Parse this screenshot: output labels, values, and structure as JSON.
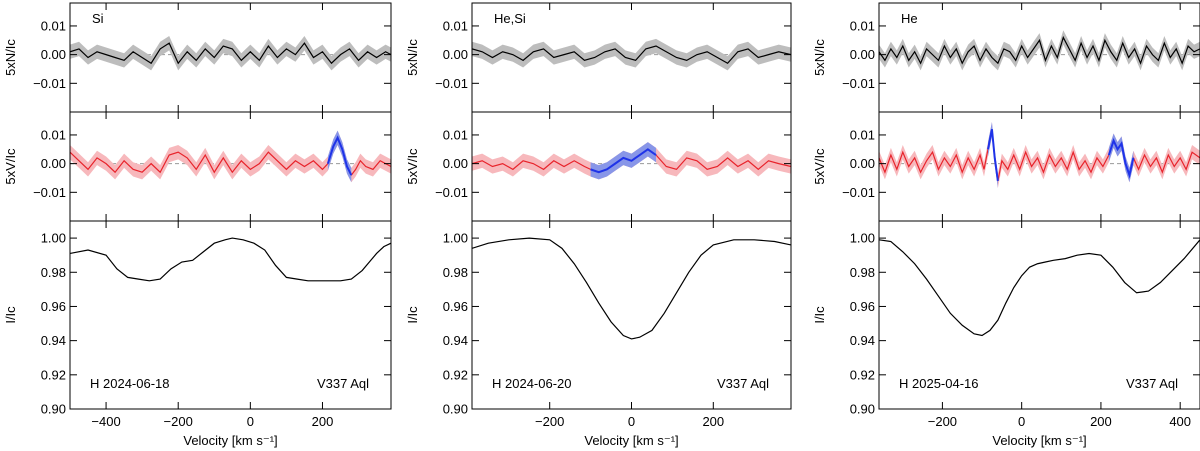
{
  "chart_data": [
    {
      "type": "line",
      "panel_label": "Si",
      "annotation_left": "H 2024-06-18",
      "annotation_right": "V337 Aql",
      "xlabel": "Velocity [km s⁻¹]",
      "xlim": [
        -500,
        390
      ],
      "xticks": [
        -400,
        -200,
        0,
        200
      ],
      "xticklabels": [
        "−400",
        "−200",
        "0",
        "200"
      ],
      "rows": {
        "N": {
          "ylabel": "5xN/Iᴄ",
          "ylim": [
            -0.02,
            0.018
          ],
          "yticks": [
            0.01,
            0.0,
            -0.01
          ],
          "yticklabels": [
            "0.01",
            "0.00",
            "−0.01"
          ]
        },
        "V": {
          "ylabel": "5xV/Iᴄ",
          "ylim": [
            -0.02,
            0.018
          ],
          "yticks": [
            0.01,
            0.0,
            -0.01
          ],
          "yticklabels": [
            "0.01",
            "0.00",
            "−0.01"
          ],
          "signal_ranges": [
            [
              210,
              290
            ]
          ]
        },
        "I": {
          "ylabel": "I/Iᴄ",
          "ylim": [
            0.9,
            1.01
          ],
          "yticks": [
            1.0,
            0.98,
            0.96,
            0.94,
            0.92,
            0.9
          ],
          "yticklabels": [
            "1.00",
            "0.98",
            "0.96",
            "0.94",
            "0.92",
            "0.90"
          ]
        }
      },
      "stokes_I": {
        "x": [
          -500,
          -450,
          -400,
          -370,
          -340,
          -310,
          -280,
          -250,
          -220,
          -190,
          -160,
          -130,
          -100,
          -70,
          -50,
          -20,
          10,
          40,
          70,
          100,
          130,
          160,
          190,
          220,
          250,
          280,
          310,
          330,
          350,
          370,
          390
        ],
        "y": [
          0.991,
          0.993,
          0.99,
          0.982,
          0.977,
          0.976,
          0.975,
          0.976,
          0.982,
          0.986,
          0.987,
          0.992,
          0.997,
          0.999,
          1.0,
          0.999,
          0.997,
          0.993,
          0.984,
          0.977,
          0.976,
          0.975,
          0.975,
          0.975,
          0.975,
          0.976,
          0.981,
          0.986,
          0.991,
          0.995,
          0.997
        ]
      },
      "stokes_V": {
        "x": [
          -500,
          -475,
          -450,
          -425,
          -400,
          -375,
          -350,
          -325,
          -300,
          -275,
          -250,
          -225,
          -200,
          -175,
          -150,
          -125,
          -100,
          -75,
          -50,
          -25,
          0,
          25,
          50,
          75,
          100,
          125,
          150,
          175,
          200,
          215,
          230,
          242,
          255,
          268,
          280,
          292,
          305,
          320,
          340,
          360,
          390
        ],
        "y": [
          0.004,
          0.001,
          -0.002,
          0.002,
          0.0,
          -0.003,
          0.001,
          -0.002,
          -0.003,
          0.0,
          -0.003,
          0.003,
          0.004,
          0.002,
          -0.002,
          0.003,
          -0.003,
          0.002,
          -0.003,
          0.001,
          -0.002,
          0.0,
          0.004,
          0.001,
          -0.002,
          0.001,
          -0.001,
          0.001,
          -0.002,
          0.0,
          0.006,
          0.009,
          0.005,
          -0.001,
          -0.004,
          -0.002,
          0.001,
          -0.001,
          -0.002,
          0.001,
          -0.001
        ]
      },
      "stokes_N": {
        "x": [
          -500,
          -475,
          -450,
          -425,
          -400,
          -375,
          -350,
          -325,
          -300,
          -275,
          -250,
          -225,
          -200,
          -175,
          -150,
          -125,
          -100,
          -75,
          -50,
          -25,
          0,
          25,
          50,
          75,
          100,
          125,
          150,
          175,
          200,
          225,
          250,
          275,
          300,
          325,
          350,
          375,
          390
        ],
        "y": [
          0.001,
          0.002,
          -0.001,
          0.001,
          0.0,
          -0.001,
          -0.002,
          0.001,
          -0.001,
          -0.003,
          0.002,
          0.004,
          -0.003,
          0.001,
          -0.002,
          0.002,
          -0.001,
          0.003,
          0.002,
          -0.002,
          0.001,
          -0.002,
          0.003,
          -0.001,
          0.002,
          0.0,
          0.004,
          -0.001,
          0.001,
          -0.003,
          0.0,
          0.002,
          -0.002,
          0.001,
          -0.001,
          0.001,
          0.0
        ]
      }
    },
    {
      "type": "line",
      "panel_label": "He,Si",
      "annotation_left": "H 2024-06-20",
      "annotation_right": "V337 Aql",
      "xlabel": "Velocity [km s⁻¹]",
      "xlim": [
        -390,
        390
      ],
      "xticks": [
        -200,
        0,
        200
      ],
      "xticklabels": [
        "−200",
        "0",
        "200"
      ],
      "rows": {
        "N": {
          "ylabel": "5xN/Iᴄ",
          "ylim": [
            -0.02,
            0.018
          ],
          "yticks": [
            0.01,
            0.0,
            -0.01
          ],
          "yticklabels": [
            "0.01",
            "0.00",
            "−0.01"
          ]
        },
        "V": {
          "ylabel": "5xV/Iᴄ",
          "ylim": [
            -0.02,
            0.018
          ],
          "yticks": [
            0.01,
            0.0,
            -0.01
          ],
          "yticklabels": [
            "0.01",
            "0.00",
            "−0.01"
          ],
          "signal_ranges": [
            [
              -100,
              60
            ]
          ]
        },
        "I": {
          "ylabel": "I/Iᴄ",
          "ylim": [
            0.9,
            1.01
          ],
          "yticks": [
            1.0,
            0.98,
            0.96,
            0.94,
            0.92,
            0.9
          ],
          "yticklabels": [
            "1.00",
            "0.98",
            "0.96",
            "0.94",
            "0.92",
            "0.90"
          ]
        }
      },
      "stokes_I": {
        "x": [
          -390,
          -350,
          -300,
          -250,
          -200,
          -170,
          -140,
          -110,
          -80,
          -50,
          -20,
          0,
          20,
          50,
          80,
          110,
          140,
          170,
          200,
          250,
          300,
          350,
          390
        ],
        "y": [
          0.994,
          0.997,
          0.999,
          1.0,
          0.999,
          0.994,
          0.985,
          0.974,
          0.962,
          0.951,
          0.943,
          0.941,
          0.942,
          0.946,
          0.956,
          0.968,
          0.98,
          0.99,
          0.996,
          0.999,
          0.999,
          0.998,
          0.996
        ]
      },
      "stokes_V": {
        "x": [
          -390,
          -365,
          -340,
          -315,
          -290,
          -265,
          -240,
          -215,
          -190,
          -165,
          -140,
          -115,
          -100,
          -80,
          -60,
          -40,
          -20,
          0,
          20,
          40,
          60,
          85,
          110,
          135,
          160,
          185,
          210,
          235,
          260,
          285,
          310,
          335,
          360,
          390
        ],
        "y": [
          0.0,
          0.001,
          -0.001,
          0.0,
          -0.002,
          0.001,
          0.0,
          -0.002,
          0.001,
          -0.001,
          0.001,
          -0.001,
          -0.002,
          -0.003,
          -0.002,
          0.0,
          0.002,
          0.001,
          0.003,
          0.005,
          0.003,
          -0.001,
          -0.002,
          0.002,
          0.001,
          -0.002,
          -0.001,
          0.002,
          -0.001,
          0.001,
          -0.002,
          0.001,
          0.0,
          -0.001
        ]
      },
      "stokes_N": {
        "x": [
          -390,
          -365,
          -340,
          -315,
          -290,
          -265,
          -240,
          -215,
          -190,
          -165,
          -140,
          -115,
          -90,
          -65,
          -40,
          -15,
          10,
          35,
          60,
          85,
          110,
          135,
          160,
          185,
          210,
          235,
          260,
          285,
          310,
          335,
          360,
          390
        ],
        "y": [
          0.002,
          0.001,
          -0.001,
          0.001,
          0.0,
          -0.002,
          0.001,
          0.002,
          -0.001,
          0.0,
          0.001,
          -0.002,
          -0.001,
          0.001,
          0.002,
          -0.001,
          -0.002,
          0.002,
          0.003,
          0.001,
          -0.001,
          -0.002,
          0.0,
          0.001,
          -0.001,
          -0.003,
          0.001,
          0.002,
          -0.001,
          0.0,
          0.001,
          0.0
        ]
      }
    },
    {
      "type": "line",
      "panel_label": "He",
      "annotation_left": "H 2025-04-16",
      "annotation_right": "V337 Aql",
      "xlabel": "Velocity [km s⁻¹]",
      "xlim": [
        -360,
        450
      ],
      "xticks": [
        -200,
        0,
        200,
        400
      ],
      "xticklabels": [
        "−200",
        "0",
        "200",
        "400"
      ],
      "rows": {
        "N": {
          "ylabel": "5xN/Iᴄ",
          "ylim": [
            -0.02,
            0.018
          ],
          "yticks": [
            0.01,
            0.0,
            -0.01
          ],
          "yticklabels": [
            "0.01",
            "0.00",
            "−0.01"
          ]
        },
        "V": {
          "ylabel": "5xV/Iᴄ",
          "ylim": [
            -0.02,
            0.018
          ],
          "yticks": [
            0.01,
            0.0,
            -0.01
          ],
          "yticklabels": [
            "0.01",
            "0.00",
            "−0.01"
          ],
          "signal_ranges": [
            [
              -90,
              -60
            ],
            [
              220,
              285
            ]
          ]
        },
        "I": {
          "ylabel": "I/Iᴄ",
          "ylim": [
            0.9,
            1.01
          ],
          "yticks": [
            1.0,
            0.98,
            0.96,
            0.94,
            0.92,
            0.9
          ],
          "yticklabels": [
            "1.00",
            "0.98",
            "0.96",
            "0.94",
            "0.92",
            "0.90"
          ]
        }
      },
      "stokes_I": {
        "x": [
          -360,
          -330,
          -300,
          -270,
          -240,
          -210,
          -180,
          -150,
          -120,
          -100,
          -80,
          -60,
          -40,
          -20,
          0,
          20,
          40,
          60,
          80,
          110,
          140,
          170,
          200,
          230,
          260,
          290,
          320,
          350,
          380,
          410,
          450
        ],
        "y": [
          0.999,
          0.998,
          0.992,
          0.985,
          0.976,
          0.966,
          0.956,
          0.949,
          0.944,
          0.943,
          0.946,
          0.952,
          0.962,
          0.971,
          0.978,
          0.983,
          0.985,
          0.986,
          0.987,
          0.988,
          0.99,
          0.991,
          0.99,
          0.983,
          0.974,
          0.968,
          0.969,
          0.974,
          0.981,
          0.988,
          0.999
        ]
      },
      "stokes_V": {
        "x": [
          -360,
          -345,
          -330,
          -315,
          -300,
          -285,
          -270,
          -255,
          -240,
          -225,
          -210,
          -195,
          -180,
          -165,
          -150,
          -135,
          -120,
          -105,
          -95,
          -85,
          -75,
          -68,
          -60,
          -50,
          -35,
          -20,
          -5,
          10,
          25,
          40,
          55,
          70,
          85,
          100,
          115,
          130,
          145,
          160,
          175,
          190,
          205,
          220,
          232,
          242,
          252,
          262,
          272,
          282,
          295,
          310,
          325,
          340,
          355,
          370,
          385,
          400,
          415,
          430,
          450
        ],
        "y": [
          0.002,
          -0.003,
          0.003,
          -0.002,
          0.004,
          -0.001,
          0.002,
          -0.003,
          0.001,
          0.004,
          -0.002,
          0.002,
          -0.001,
          0.003,
          -0.003,
          0.002,
          -0.002,
          0.003,
          -0.002,
          0.005,
          0.012,
          0.002,
          -0.006,
          0.001,
          -0.002,
          0.003,
          -0.002,
          0.004,
          -0.001,
          0.002,
          -0.003,
          0.003,
          -0.001,
          0.002,
          -0.002,
          0.004,
          -0.002,
          0.001,
          -0.003,
          0.002,
          -0.001,
          0.003,
          0.008,
          0.005,
          0.007,
          0.0,
          -0.004,
          0.002,
          -0.002,
          0.003,
          -0.001,
          0.002,
          -0.003,
          0.003,
          -0.001,
          0.002,
          -0.002,
          0.004,
          0.002
        ]
      },
      "stokes_N": {
        "x": [
          -360,
          -345,
          -330,
          -315,
          -300,
          -285,
          -270,
          -255,
          -240,
          -225,
          -210,
          -195,
          -180,
          -165,
          -150,
          -135,
          -120,
          -105,
          -90,
          -75,
          -60,
          -45,
          -30,
          -15,
          0,
          15,
          30,
          45,
          60,
          75,
          90,
          105,
          120,
          135,
          150,
          165,
          180,
          195,
          210,
          225,
          240,
          255,
          270,
          285,
          300,
          315,
          330,
          345,
          360,
          375,
          390,
          405,
          420,
          435,
          450
        ],
        "y": [
          0.001,
          -0.002,
          0.002,
          -0.001,
          0.003,
          -0.002,
          0.001,
          -0.003,
          0.002,
          0.0,
          -0.002,
          0.003,
          -0.001,
          0.002,
          -0.003,
          0.001,
          0.003,
          -0.002,
          0.002,
          -0.001,
          -0.003,
          0.002,
          0.001,
          -0.002,
          0.003,
          -0.001,
          0.002,
          0.005,
          -0.002,
          0.003,
          -0.001,
          0.006,
          0.002,
          -0.002,
          0.004,
          -0.001,
          0.003,
          -0.002,
          0.005,
          0.001,
          -0.002,
          0.004,
          -0.001,
          0.002,
          -0.003,
          0.003,
          0.0,
          -0.002,
          0.004,
          -0.001,
          0.002,
          -0.003,
          0.003,
          0.001,
          0.002
        ]
      }
    }
  ]
}
